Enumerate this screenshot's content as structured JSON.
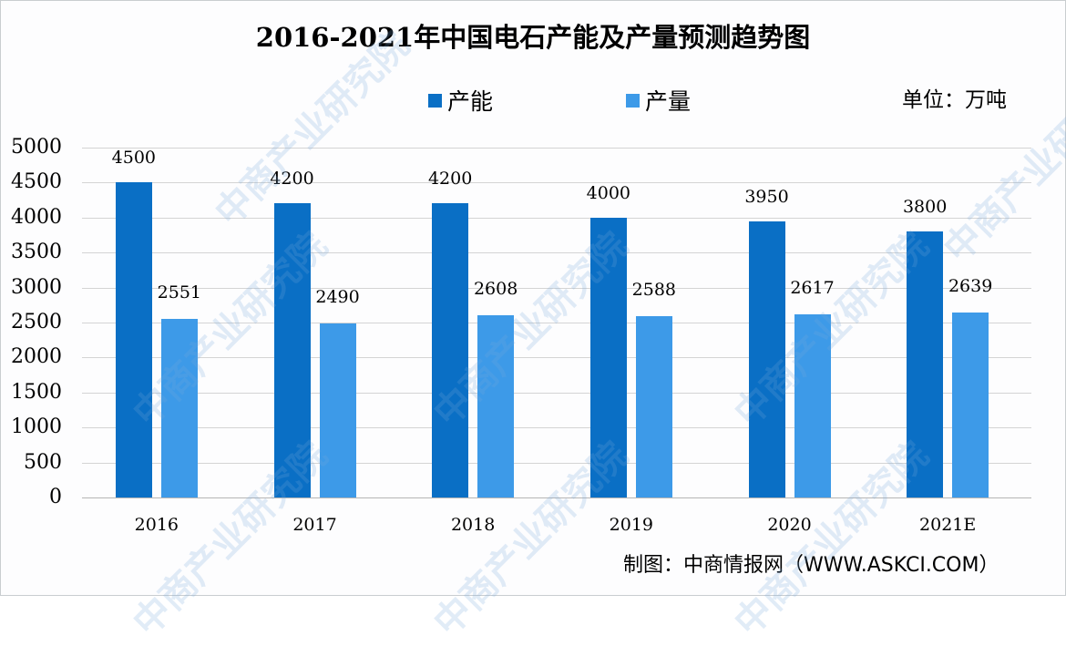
{
  "chart_data": {
    "type": "bar",
    "title": "2016-2021年中国电石产能及产量预测趋势图",
    "unit_label": "单位：万吨",
    "xlabel": "",
    "ylabel": "",
    "ylim": [
      0,
      5000
    ],
    "yticks": [
      0,
      500,
      1000,
      1500,
      2000,
      2500,
      3000,
      3500,
      4000,
      4500,
      5000
    ],
    "grid": true,
    "legend_position": "top",
    "categories": [
      "2016",
      "2017",
      "2018",
      "2019",
      "2020",
      "2021E"
    ],
    "series": [
      {
        "name": "产能",
        "color": "#0a6fc5",
        "values": [
          4500,
          4200,
          4200,
          4000,
          3950,
          3800
        ]
      },
      {
        "name": "产量",
        "color": "#3d9ae8",
        "values": [
          2551,
          2490,
          2608,
          2588,
          2617,
          2639
        ]
      }
    ],
    "source": "制图：中商情报网（WWW.ASKCI.COM）"
  },
  "watermark": "中商产业研究院"
}
